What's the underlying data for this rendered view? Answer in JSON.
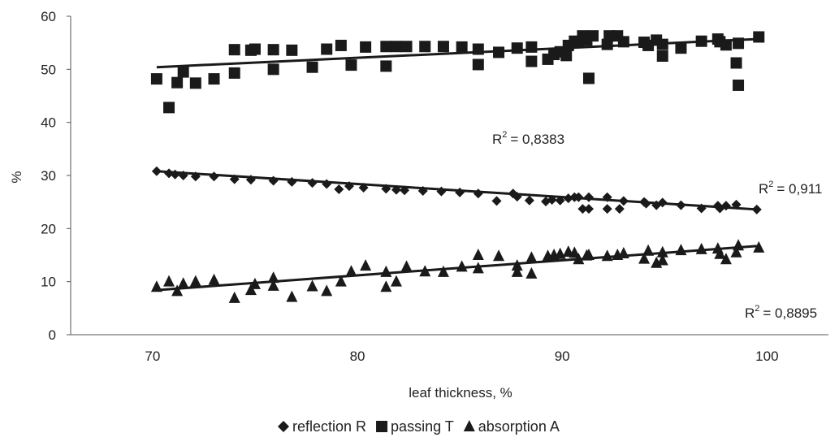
{
  "chart_data": {
    "type": "scatter",
    "xlabel": "leaf thickness, %",
    "ylabel": "%",
    "xlim": [
      66,
      103
    ],
    "ylim": [
      0,
      60
    ],
    "x_ticks": [
      70,
      80,
      90,
      100
    ],
    "y_ticks": [
      0,
      10,
      20,
      30,
      40,
      50,
      60
    ],
    "grid": false,
    "legend_position": "bottom",
    "series": [
      {
        "name": "reflection R",
        "marker": "diamond",
        "color": "#1a1a1a",
        "x": [
          70.2,
          70.8,
          71.1,
          71.5,
          72.1,
          73.0,
          74.0,
          74.8,
          75.9,
          76.8,
          77.8,
          78.5,
          79.1,
          79.6,
          80.3,
          81.4,
          81.9,
          82.3,
          83.2,
          84.1,
          85.0,
          85.9,
          86.8,
          87.6,
          87.8,
          88.4,
          89.2,
          89.5,
          89.9,
          90.3,
          90.6,
          90.8,
          91.0,
          91.3,
          91.3,
          92.2,
          92.2,
          92.8,
          93.0,
          94.0,
          94.1,
          94.6,
          94.9,
          95.8,
          96.8,
          97.6,
          97.7,
          98.0,
          98.5,
          99.5
        ],
        "y": [
          30.8,
          30.4,
          30.2,
          30.0,
          29.8,
          29.8,
          29.3,
          29.2,
          29.0,
          28.8,
          28.6,
          28.4,
          27.4,
          28.0,
          27.7,
          27.5,
          27.3,
          27.2,
          27.1,
          27.0,
          26.8,
          26.6,
          25.2,
          26.6,
          26.0,
          25.3,
          25.1,
          25.4,
          25.3,
          25.7,
          25.9,
          25.9,
          23.7,
          25.9,
          23.7,
          25.9,
          23.7,
          23.7,
          25.2,
          25.0,
          24.7,
          24.4,
          24.9,
          24.4,
          23.8,
          24.3,
          23.8,
          24.3,
          24.5,
          23.6
        ]
      },
      {
        "name": "passing T",
        "marker": "square",
        "color": "#1a1a1a",
        "x": [
          70.2,
          70.8,
          71.2,
          71.5,
          72.1,
          73.0,
          74.0,
          74.0,
          74.8,
          75.0,
          75.9,
          75.9,
          76.8,
          77.8,
          78.5,
          79.2,
          79.7,
          80.4,
          81.4,
          81.4,
          81.9,
          82.4,
          83.3,
          84.2,
          85.1,
          85.9,
          85.9,
          86.9,
          87.8,
          88.5,
          88.5,
          89.3,
          89.6,
          89.9,
          90.2,
          90.3,
          90.6,
          90.8,
          91.0,
          91.2,
          91.3,
          91.5,
          92.2,
          92.3,
          92.7,
          93.0,
          94.0,
          94.2,
          94.6,
          94.9,
          94.9,
          95.8,
          96.8,
          97.6,
          97.7,
          98.0,
          98.5,
          98.6,
          98.6,
          99.6
        ],
        "y": [
          48.2,
          42.8,
          47.5,
          49.5,
          47.4,
          48.2,
          49.3,
          53.7,
          53.6,
          53.8,
          50.0,
          53.7,
          53.6,
          50.4,
          53.8,
          54.5,
          50.8,
          54.2,
          50.6,
          54.3,
          54.3,
          54.3,
          54.3,
          54.3,
          54.2,
          50.9,
          53.8,
          53.2,
          54.0,
          51.5,
          54.2,
          51.9,
          52.8,
          53.3,
          52.6,
          54.5,
          55.3,
          55.2,
          56.3,
          55.5,
          48.3,
          56.3,
          54.7,
          56.3,
          56.3,
          55.2,
          55.1,
          54.5,
          55.5,
          52.5,
          54.7,
          54.0,
          55.3,
          55.7,
          55.2,
          54.6,
          51.2,
          47.0,
          54.9,
          56.1
        ]
      },
      {
        "name": "absorption A",
        "marker": "triangle",
        "color": "#1a1a1a",
        "x": [
          70.2,
          70.8,
          71.2,
          71.5,
          72.1,
          73.0,
          74.0,
          74.8,
          75.0,
          75.9,
          75.9,
          76.8,
          77.8,
          78.5,
          79.2,
          79.7,
          80.4,
          81.4,
          81.4,
          81.9,
          82.4,
          83.3,
          84.2,
          85.1,
          85.9,
          85.9,
          86.9,
          87.8,
          87.8,
          88.5,
          88.5,
          89.3,
          89.6,
          89.9,
          90.3,
          90.6,
          90.8,
          91.2,
          91.3,
          92.2,
          92.7,
          93.0,
          94.0,
          94.2,
          94.6,
          94.9,
          94.9,
          95.8,
          96.8,
          97.6,
          97.7,
          98.0,
          98.5,
          98.6,
          99.6
        ],
        "y": [
          9.0,
          10.0,
          8.2,
          9.6,
          10.0,
          10.3,
          6.9,
          8.4,
          9.5,
          9.2,
          10.7,
          7.1,
          9.1,
          8.2,
          10.0,
          11.9,
          13.0,
          9.0,
          11.8,
          10.0,
          12.8,
          11.9,
          11.8,
          12.8,
          12.5,
          15.0,
          14.8,
          11.8,
          13.0,
          11.5,
          14.5,
          14.8,
          15.0,
          15.2,
          15.6,
          15.4,
          14.2,
          14.9,
          15.0,
          14.8,
          15.0,
          15.3,
          14.3,
          15.8,
          13.5,
          14.0,
          15.5,
          15.9,
          16.1,
          16.2,
          15.2,
          14.2,
          15.5,
          16.8,
          16.4
        ]
      }
    ],
    "trendlines": [
      {
        "series": "reflection R",
        "x": [
          70.2,
          99.5
        ],
        "y": [
          30.8,
          23.6
        ],
        "label": "R",
        "r2_base": "= 0,911"
      },
      {
        "series": "passing T",
        "x": [
          70.2,
          99.5
        ],
        "y": [
          50.4,
          55.7
        ],
        "label": "R",
        "r2_base": "= 0,8383"
      },
      {
        "series": "absorption A",
        "x": [
          70.2,
          99.5
        ],
        "y": [
          8.4,
          16.7
        ],
        "label": "R",
        "r2_base": "= 0,8895"
      }
    ],
    "annotations": {
      "r2_symbol": "R",
      "r2_exponent": "2",
      "passing": "= 0,8383",
      "reflection": "= 0,911",
      "absorption": "= 0,8895"
    }
  }
}
